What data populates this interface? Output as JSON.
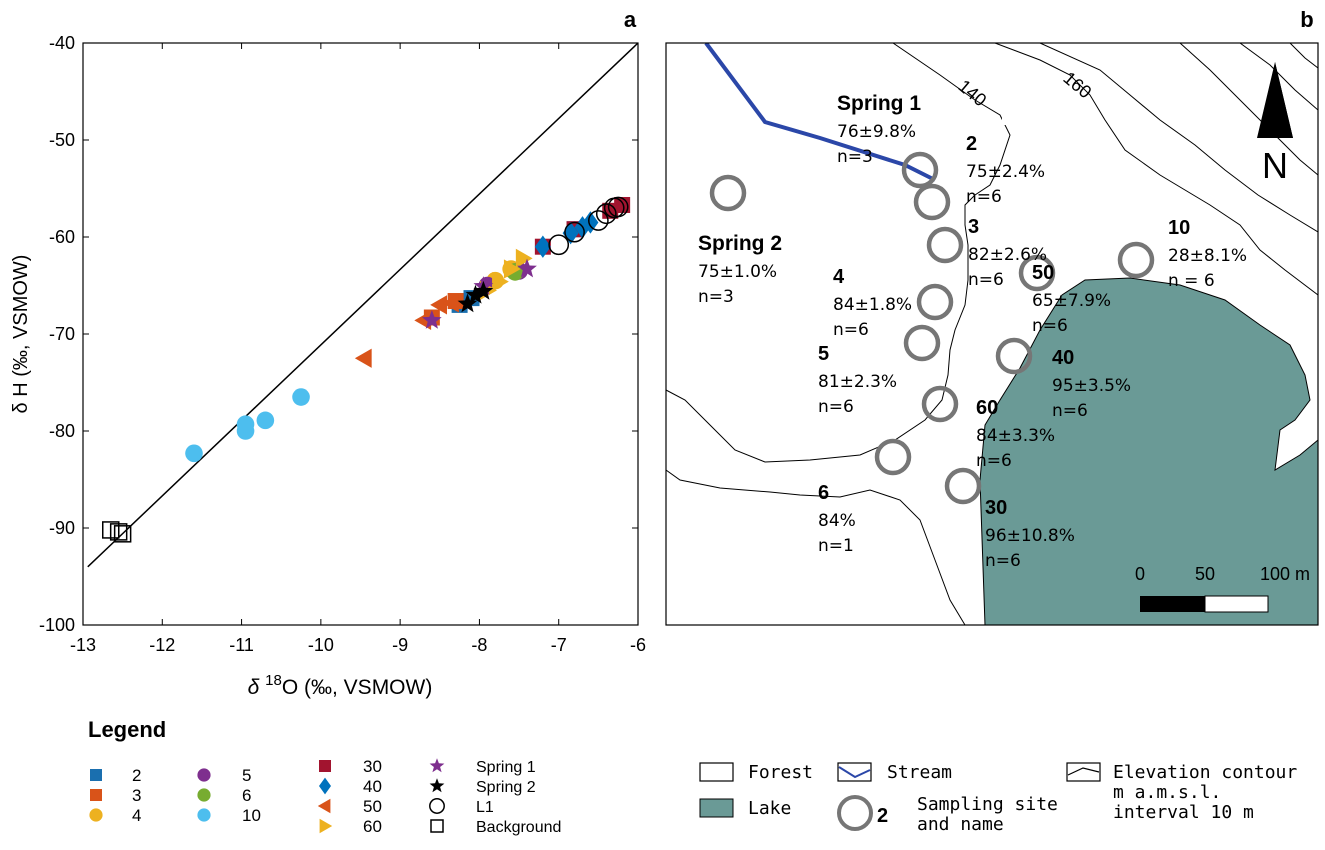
{
  "panel_a_label": "a",
  "panel_b_label": "b",
  "chart_data": {
    "type": "scatter",
    "title": "",
    "xlabel_prefix": "δ ",
    "xlabel_sup": "18",
    "xlabel_rest": "O (‰, VSMOW)",
    "ylabel": "δ H (‰, VSMOW)",
    "xlim": [
      -13,
      -6
    ],
    "ylim": [
      -100,
      -40
    ],
    "xticks": [
      -13,
      -12,
      -11,
      -10,
      -9,
      -8,
      -7,
      -6
    ],
    "yticks": [
      -100,
      -90,
      -80,
      -70,
      -60,
      -50,
      -40
    ],
    "grid": false,
    "reference_line": {
      "x": [
        -12.94,
        -6.0
      ],
      "y": [
        -94.0,
        -40.0
      ]
    },
    "series": [
      {
        "name": "2",
        "marker": "square",
        "color": "#1a6faf",
        "x": [
          -8.25,
          -8.1,
          -6.8
        ],
        "y": [
          -67.0,
          -66.3,
          -59.2
        ]
      },
      {
        "name": "3",
        "marker": "square",
        "color": "#d95319",
        "x": [
          -8.6,
          -8.3
        ],
        "y": [
          -68.3,
          -66.6
        ]
      },
      {
        "name": "4",
        "marker": "circle",
        "color": "#edb120",
        "x": [
          -7.8,
          -7.6
        ],
        "y": [
          -64.5,
          -63.3
        ]
      },
      {
        "name": "5",
        "marker": "circle",
        "color": "#7e2f8e",
        "x": [
          -7.9,
          -7.5
        ],
        "y": [
          -65.0,
          -63.5
        ]
      },
      {
        "name": "6",
        "marker": "circle",
        "color": "#77ac30",
        "x": [
          -7.55
        ],
        "y": [
          -63.6
        ]
      },
      {
        "name": "10",
        "marker": "circle",
        "color": "#4dbeee",
        "x": [
          -11.6,
          -10.95,
          -10.95,
          -10.7,
          -10.25
        ],
        "y": [
          -82.3,
          -80.0,
          -79.3,
          -78.9,
          -76.5
        ]
      },
      {
        "name": "30",
        "marker": "square",
        "color": "#a2142f",
        "x": [
          -7.2,
          -6.8,
          -6.35,
          -6.2
        ],
        "y": [
          -61.0,
          -59.2,
          -57.3,
          -56.7
        ]
      },
      {
        "name": "40",
        "marker": "diamond",
        "color": "#0072bd",
        "x": [
          -7.2,
          -6.85,
          -6.7,
          -6.6
        ],
        "y": [
          -61.0,
          -59.6,
          -59.0,
          -58.5
        ]
      },
      {
        "name": "50",
        "marker": "triangle-left",
        "color": "#d95319",
        "x": [
          -9.45,
          -8.7,
          -8.5,
          -8.35
        ],
        "y": [
          -72.5,
          -68.6,
          -67.0,
          -66.8
        ]
      },
      {
        "name": "60",
        "marker": "triangle-right",
        "color": "#edb120",
        "x": [
          -7.9,
          -7.75,
          -7.6,
          -7.45
        ],
        "y": [
          -65.5,
          -64.6,
          -63.3,
          -62.2
        ]
      },
      {
        "name": "Spring 1",
        "marker": "star",
        "color": "#7e2f8e",
        "x": [
          -8.6,
          -7.95,
          -7.4
        ],
        "y": [
          -68.6,
          -65.1,
          -63.3
        ]
      },
      {
        "name": "Spring 2",
        "marker": "star",
        "color": "#000000",
        "x": [
          -8.15,
          -8.05,
          -7.95
        ],
        "y": [
          -66.9,
          -66.0,
          -65.6
        ]
      },
      {
        "name": "L1",
        "marker": "open-circle",
        "color": "#000000",
        "x": [
          -7.0,
          -6.8,
          -6.5,
          -6.4,
          -6.3,
          -6.25
        ],
        "y": [
          -60.8,
          -59.5,
          -58.3,
          -57.6,
          -57.0,
          -56.9
        ]
      },
      {
        "name": "Background",
        "marker": "open-square",
        "color": "#000000",
        "x": [
          -12.65,
          -12.55,
          -12.5
        ],
        "y": [
          -90.2,
          -90.4,
          -90.6
        ]
      }
    ]
  },
  "legend": {
    "title": "Legend",
    "col1": [
      {
        "label": "2",
        "marker": "square",
        "color": "#1a6faf"
      },
      {
        "label": "3",
        "marker": "square",
        "color": "#d95319"
      },
      {
        "label": "4",
        "marker": "circle",
        "color": "#edb120"
      }
    ],
    "col2": [
      {
        "label": "5",
        "marker": "circle",
        "color": "#7e2f8e"
      },
      {
        "label": "6",
        "marker": "circle",
        "color": "#77ac30"
      },
      {
        "label": "10",
        "marker": "circle",
        "color": "#4dbeee"
      }
    ],
    "col3": [
      {
        "label": "30",
        "marker": "square",
        "color": "#a2142f"
      },
      {
        "label": "40",
        "marker": "diamond",
        "color": "#0072bd"
      },
      {
        "label": "50",
        "marker": "triangle-left",
        "color": "#d95319"
      },
      {
        "label": "60",
        "marker": "triangle-right",
        "color": "#edb120"
      }
    ],
    "col4": [
      {
        "label": "Spring 1",
        "marker": "star",
        "color": "#7e2f8e"
      },
      {
        "label": "Spring 2",
        "marker": "star",
        "color": "#000000"
      },
      {
        "label": "L1",
        "marker": "open-circle",
        "color": "#000000"
      },
      {
        "label": "Background",
        "marker": "open-square",
        "color": "#000000"
      }
    ]
  },
  "map": {
    "lake_color": "#6a9a96",
    "stream_color": "#2b47a8",
    "contour_labels": [
      "140",
      "160"
    ],
    "north_label": "N",
    "scale": {
      "tick0": "0",
      "tick1": "50",
      "tick2": "100 m"
    },
    "sites": [
      {
        "name": "Spring 1",
        "stat": "76±9.8%",
        "n": "n=3"
      },
      {
        "name": "Spring 2",
        "stat": "75±1.0%",
        "n": "n=3"
      },
      {
        "name": "2",
        "stat": "75±2.4%",
        "n": "n=6"
      },
      {
        "name": "3",
        "stat": "82±2.6%",
        "n": "n=6"
      },
      {
        "name": "4",
        "stat": "84±1.8%",
        "n": "n=6"
      },
      {
        "name": "5",
        "stat": "81±2.3%",
        "n": "n=6"
      },
      {
        "name": "6",
        "stat": "84%",
        "n": "n=1"
      },
      {
        "name": "10",
        "stat": "28±8.1%",
        "n": "n = 6"
      },
      {
        "name": "50",
        "stat": "65±7.9%",
        "n": "n=6"
      },
      {
        "name": "40",
        "stat": "95±3.5%",
        "n": "n=6"
      },
      {
        "name": "60",
        "stat": "84±3.3%",
        "n": "n=6"
      },
      {
        "name": "30",
        "stat": "96±10.8%",
        "n": "n=6"
      }
    ],
    "legend": {
      "forest": "Forest",
      "lake": "Lake",
      "stream": "Stream",
      "site_number": "2",
      "site_line1": "Sampling site",
      "site_line2": "and name",
      "contour_line1": "Elevation contour",
      "contour_line2": "m a.m.s.l.",
      "contour_line3": "interval 10 m"
    }
  }
}
